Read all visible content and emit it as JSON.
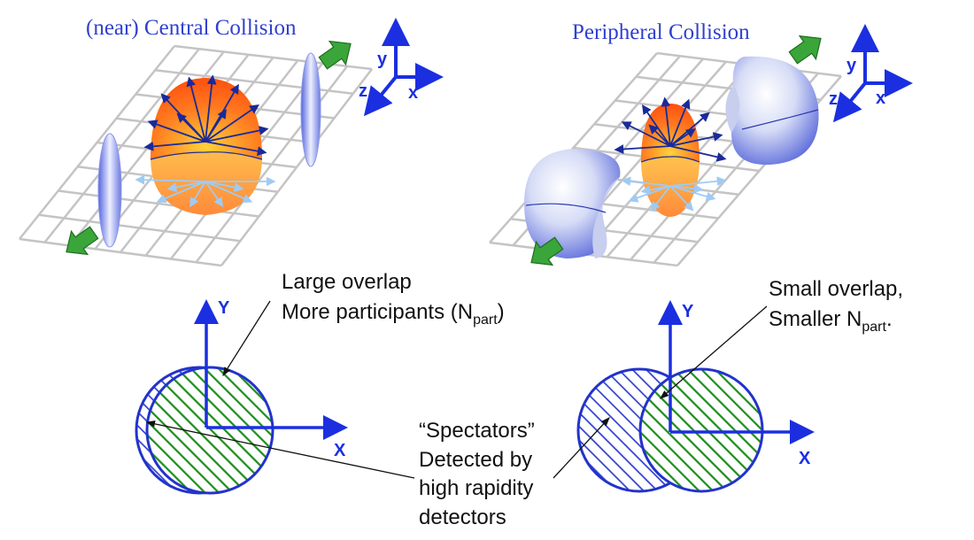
{
  "titles": {
    "central": "(near) Central Collision",
    "peripheral": "Peripheral Collision"
  },
  "axes3d": {
    "x": "x",
    "y": "y",
    "z": "z"
  },
  "axes2d": {
    "x": "X",
    "y": "Y"
  },
  "annotations": {
    "large_overlap": {
      "line1": "Large overlap",
      "line2_prefix": "More participants (N",
      "line2_sub": "part",
      "line2_suffix": ")"
    },
    "small_overlap": {
      "line1": "Small overlap,",
      "line2_prefix": "Smaller N",
      "line2_sub": "part",
      "line2_suffix": "."
    },
    "spectators": {
      "line1": "“Spectators”",
      "line2": "Detected by",
      "line3": "high rapidity",
      "line4": "detectors"
    }
  },
  "colors": {
    "title": "#2f3fd0",
    "axis": "#1b2fe0",
    "nucleus_edge": "#2233cc",
    "participant_hatch": "#1f8f1f",
    "spectator_hatch": "#3344cc",
    "arrow_green": "#3aa63a",
    "fireball_top": "#ff5a1a",
    "fireball_bottom": "#ffe14a",
    "dark_arrow": "#1a2a9a",
    "light_arrow": "#9ecbf5",
    "grid": "#c4c4c4"
  }
}
